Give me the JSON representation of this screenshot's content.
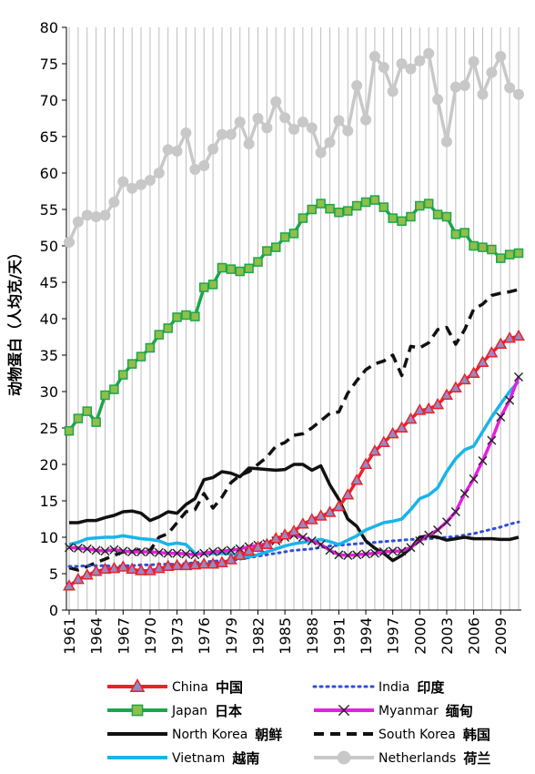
{
  "chart_data": {
    "type": "line",
    "ylabel": "动物蛋白（人均克/天）",
    "xlabel": "",
    "ylim": [
      0,
      80
    ],
    "yticks": [
      0,
      5,
      10,
      15,
      20,
      25,
      30,
      35,
      40,
      45,
      50,
      55,
      60,
      65,
      70,
      75,
      80
    ],
    "xlim": [
      1961,
      2011
    ],
    "xticks": [
      1961,
      1964,
      1967,
      1970,
      1973,
      1976,
      1979,
      1982,
      1985,
      1988,
      1991,
      1994,
      1997,
      2000,
      2003,
      2006,
      2009
    ],
    "grid": "vertical",
    "legend_position": "bottom",
    "x": [
      1961,
      1962,
      1963,
      1964,
      1965,
      1966,
      1967,
      1968,
      1969,
      1970,
      1971,
      1972,
      1973,
      1974,
      1975,
      1976,
      1977,
      1978,
      1979,
      1980,
      1981,
      1982,
      1983,
      1984,
      1985,
      1986,
      1987,
      1988,
      1989,
      1990,
      1991,
      1992,
      1993,
      1994,
      1995,
      1996,
      1997,
      1998,
      1999,
      2000,
      2001,
      2002,
      2003,
      2004,
      2005,
      2006,
      2007,
      2008,
      2009,
      2010,
      2011
    ],
    "series": [
      {
        "name": "China",
        "name_zh": "中国",
        "color": "#e8232a",
        "marker": "triangle",
        "marker_fill": "#9b86c6",
        "dash": "solid",
        "values": [
          3.3,
          4.2,
          4.8,
          5.3,
          5.6,
          5.7,
          5.9,
          5.6,
          5.4,
          5.4,
          5.7,
          6.0,
          6.1,
          6.1,
          6.2,
          6.3,
          6.3,
          6.5,
          6.9,
          7.5,
          8.1,
          8.6,
          9.0,
          9.8,
          10.3,
          10.8,
          11.8,
          12.4,
          12.9,
          13.4,
          14.2,
          15.8,
          17.8,
          20.0,
          21.8,
          23.0,
          24.2,
          25.0,
          26.2,
          27.4,
          27.6,
          28.2,
          29.5,
          30.5,
          31.6,
          32.5,
          34.0,
          35.3,
          36.5,
          37.3,
          37.6
        ]
      },
      {
        "name": "India",
        "name_zh": "印度",
        "color": "#2e4fd4",
        "marker": "none",
        "dash": "dotted",
        "values": [
          6.0,
          6.0,
          6.1,
          6.1,
          6.1,
          6.0,
          6.1,
          6.1,
          6.2,
          6.2,
          6.3,
          6.3,
          6.3,
          6.4,
          6.5,
          6.6,
          6.7,
          6.8,
          6.8,
          7.0,
          7.2,
          7.4,
          7.6,
          7.8,
          8.0,
          8.2,
          8.3,
          8.4,
          8.6,
          8.8,
          8.9,
          9.0,
          9.1,
          9.2,
          9.3,
          9.4,
          9.5,
          9.6,
          9.7,
          9.7,
          9.8,
          9.9,
          10.0,
          10.1,
          10.3,
          10.5,
          10.8,
          11.1,
          11.4,
          11.8,
          12.1
        ]
      },
      {
        "name": "Japan",
        "name_zh": "日本",
        "color": "#1aa64a",
        "marker": "square",
        "marker_fill": "#8fbf4a",
        "dash": "solid",
        "values": [
          24.6,
          26.3,
          27.3,
          25.8,
          29.5,
          30.3,
          32.3,
          33.8,
          34.8,
          36.0,
          37.8,
          38.7,
          40.2,
          40.5,
          40.3,
          44.3,
          44.7,
          47.0,
          46.8,
          46.5,
          46.9,
          47.8,
          49.3,
          49.8,
          51.2,
          51.7,
          53.8,
          55.0,
          55.8,
          55.1,
          54.6,
          54.8,
          55.5,
          56.0,
          56.3,
          55.3,
          53.8,
          53.4,
          54.0,
          55.5,
          55.8,
          54.3,
          54.0,
          51.6,
          51.8,
          50.0,
          49.8,
          49.5,
          48.3,
          48.8,
          49.0
        ]
      },
      {
        "name": "Myanmar",
        "name_zh": "缅甸",
        "color": "#e61ee0",
        "marker": "x",
        "dash": "solid",
        "values": [
          8.6,
          8.5,
          8.4,
          8.2,
          8.1,
          8.3,
          8.1,
          8.0,
          8.0,
          8.0,
          7.9,
          7.8,
          7.8,
          7.7,
          7.6,
          7.8,
          8.0,
          8.1,
          8.2,
          8.4,
          8.7,
          8.9,
          9.1,
          9.5,
          10.0,
          10.3,
          10.0,
          9.5,
          9.0,
          8.2,
          7.6,
          7.5,
          7.6,
          7.7,
          7.8,
          8.0,
          8.1,
          8.1,
          8.6,
          9.5,
          10.3,
          11.0,
          12.1,
          13.5,
          16.0,
          18.0,
          20.5,
          23.3,
          26.5,
          28.8,
          32.0
        ]
      },
      {
        "name": "North Korea",
        "name_zh": "朝鲜",
        "color": "#111111",
        "marker": "none",
        "dash": "solid",
        "values": [
          12.0,
          12.0,
          12.3,
          12.3,
          12.7,
          13.0,
          13.5,
          13.6,
          13.3,
          12.3,
          12.8,
          13.5,
          13.3,
          14.5,
          15.3,
          17.9,
          18.2,
          19.0,
          18.8,
          18.3,
          19.5,
          19.4,
          19.3,
          19.2,
          19.3,
          20.0,
          20.0,
          19.2,
          19.8,
          17.2,
          15.2,
          12.5,
          11.5,
          9.5,
          8.5,
          7.8,
          6.8,
          7.5,
          8.5,
          10.0,
          10.2,
          10.0,
          9.6,
          9.8,
          10.0,
          9.8,
          9.8,
          9.8,
          9.7,
          9.7,
          10.0
        ]
      },
      {
        "name": "South Korea",
        "name_zh": "韩国",
        "color": "#111111",
        "marker": "none",
        "dash": "dashed",
        "values": [
          5.8,
          5.5,
          6.0,
          6.5,
          7.0,
          7.5,
          8.0,
          8.0,
          8.3,
          8.2,
          10.0,
          10.5,
          12.0,
          13.5,
          13.8,
          16.0,
          14.0,
          15.5,
          17.5,
          18.5,
          19.0,
          20.0,
          21.0,
          22.5,
          23.0,
          24.0,
          24.2,
          25.0,
          26.0,
          27.0,
          27.2,
          29.8,
          31.5,
          33.0,
          33.8,
          34.2,
          35.0,
          32.2,
          36.2,
          36.0,
          36.7,
          38.5,
          38.8,
          36.5,
          38.5,
          41.3,
          42.0,
          43.2,
          43.5,
          43.7,
          44.0
        ]
      },
      {
        "name": "Vietnam",
        "name_zh": "越南",
        "color": "#19b4e8",
        "marker": "none",
        "dash": "solid",
        "values": [
          9.0,
          9.3,
          9.8,
          9.9,
          10.0,
          10.0,
          10.2,
          10.0,
          9.8,
          9.7,
          9.5,
          9.0,
          9.2,
          9.0,
          7.8,
          7.7,
          7.8,
          7.8,
          7.7,
          7.5,
          7.3,
          7.6,
          8.0,
          8.4,
          8.8,
          9.1,
          9.3,
          9.5,
          9.7,
          9.4,
          9.0,
          9.6,
          10.2,
          11.0,
          11.5,
          12.0,
          12.2,
          12.5,
          13.8,
          15.3,
          15.8,
          16.8,
          19.0,
          20.8,
          22.0,
          22.5,
          24.5,
          26.5,
          28.3,
          30.0,
          31.4
        ]
      },
      {
        "name": "Netherlands",
        "name_zh": "荷兰",
        "color": "#c8c8c8",
        "marker": "circle",
        "marker_fill": "#c8c8c8",
        "dash": "solid",
        "values": [
          50.5,
          53.3,
          54.2,
          54.0,
          54.2,
          56.0,
          58.8,
          57.9,
          58.4,
          59.0,
          60.0,
          63.2,
          63.0,
          65.5,
          60.5,
          61.0,
          63.3,
          65.3,
          65.3,
          67.0,
          64.0,
          67.5,
          66.2,
          69.8,
          67.6,
          66.0,
          67.0,
          66.2,
          62.8,
          64.2,
          67.2,
          65.8,
          72.0,
          67.3,
          76.0,
          74.5,
          71.2,
          75.0,
          74.3,
          75.4,
          76.4,
          70.1,
          64.3,
          71.8,
          72.0,
          75.3,
          70.8,
          73.8,
          76.0,
          71.7,
          70.8
        ]
      }
    ]
  }
}
